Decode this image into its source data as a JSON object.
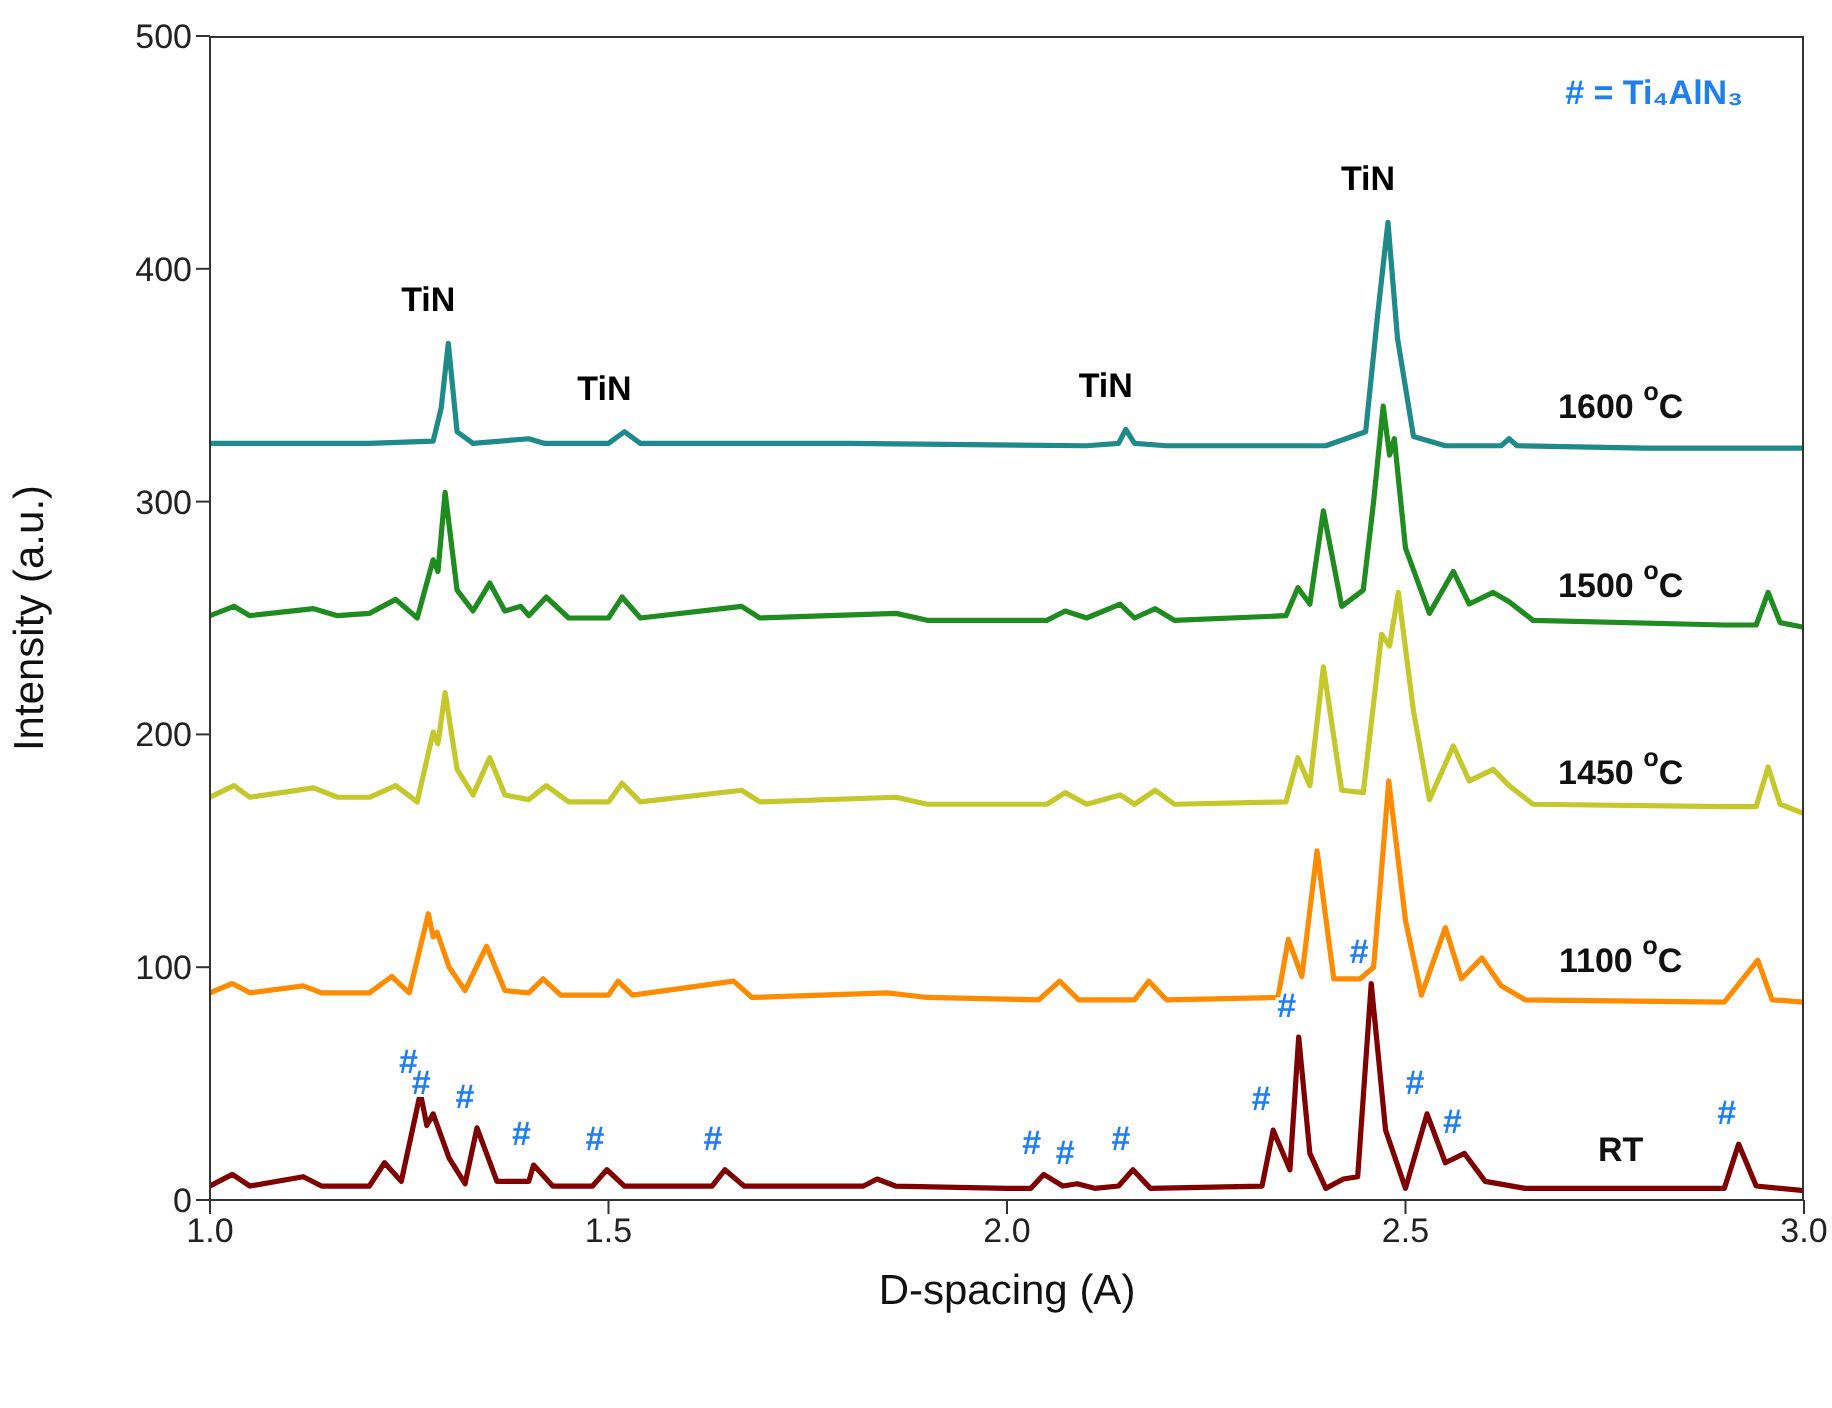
{
  "chart_data": {
    "type": "line",
    "xlabel": "D-spacing (A)",
    "ylabel": "Intensity (a.u.)",
    "xlim": [
      1.0,
      3.0
    ],
    "xticks": [
      {
        "value": 1.0,
        "label": "1.0"
      },
      {
        "value": 1.5,
        "label": "1.5"
      },
      {
        "value": 2.0,
        "label": "2.0"
      },
      {
        "value": 2.5,
        "label": "2.5"
      },
      {
        "value": 3.0,
        "label": "3.0"
      }
    ],
    "ylim": [
      0,
      500
    ],
    "yticks": [
      0,
      100,
      200,
      300,
      400,
      500
    ],
    "grid": false,
    "legend": false,
    "marker": "none",
    "line_style": "solid",
    "series": [
      {
        "name": "1600 $^{o}$C",
        "color": "#1f8a8a",
        "x": [
          1.0,
          1.2,
          1.28,
          1.29,
          1.299,
          1.31,
          1.33,
          1.4,
          1.42,
          1.5,
          1.52,
          1.54,
          1.8,
          2.1,
          2.14,
          2.149,
          2.16,
          2.2,
          2.4,
          2.45,
          2.465,
          2.478,
          2.49,
          2.51,
          2.55,
          2.62,
          2.63,
          2.64,
          2.8,
          3.0
        ],
        "values": [
          325,
          325,
          326,
          340,
          368,
          330,
          325,
          327,
          325,
          325,
          330,
          325,
          325,
          324,
          325,
          331,
          325,
          324,
          324,
          330,
          380,
          420,
          370,
          328,
          324,
          324,
          327,
          324,
          323,
          323
        ]
      },
      {
        "name": "1500 $^{o}$C",
        "color": "#1e8c1e",
        "x": [
          1.0,
          1.03,
          1.05,
          1.13,
          1.16,
          1.2,
          1.233,
          1.26,
          1.28,
          1.286,
          1.295,
          1.31,
          1.33,
          1.351,
          1.37,
          1.39,
          1.4,
          1.422,
          1.45,
          1.5,
          1.517,
          1.54,
          1.667,
          1.69,
          1.861,
          1.9,
          2.05,
          2.073,
          2.1,
          2.142,
          2.16,
          2.186,
          2.21,
          2.35,
          2.365,
          2.38,
          2.397,
          2.42,
          2.447,
          2.46,
          2.472,
          2.48,
          2.486,
          2.5,
          2.53,
          2.56,
          2.58,
          2.61,
          2.63,
          2.66,
          2.9,
          2.94,
          2.955,
          2.97,
          3.0
        ],
        "values": [
          251,
          255,
          251,
          254,
          251,
          252,
          258,
          250,
          275,
          270,
          304,
          262,
          253,
          265,
          253,
          255,
          251,
          259,
          250,
          250,
          259,
          250,
          255,
          250,
          252,
          249,
          249,
          253,
          250,
          256,
          250,
          254,
          249,
          251,
          263,
          256,
          296,
          255,
          262,
          300,
          341,
          320,
          327,
          280,
          252,
          270,
          256,
          261,
          257,
          249,
          247,
          247,
          261,
          248,
          246
        ]
      },
      {
        "name": "1450 $^{o}$C",
        "color": "#c4c82a",
        "x": [
          1.0,
          1.03,
          1.05,
          1.13,
          1.16,
          1.2,
          1.233,
          1.26,
          1.28,
          1.286,
          1.295,
          1.31,
          1.33,
          1.351,
          1.37,
          1.4,
          1.422,
          1.45,
          1.5,
          1.517,
          1.54,
          1.667,
          1.69,
          1.861,
          1.9,
          2.05,
          2.073,
          2.1,
          2.142,
          2.16,
          2.186,
          2.21,
          2.35,
          2.365,
          2.38,
          2.397,
          2.42,
          2.447,
          2.47,
          2.48,
          2.491,
          2.51,
          2.53,
          2.56,
          2.58,
          2.61,
          2.63,
          2.66,
          2.9,
          2.94,
          2.955,
          2.97,
          3.0
        ],
        "values": [
          173,
          178,
          173,
          177,
          173,
          173,
          178,
          171,
          201,
          196,
          218,
          185,
          174,
          190,
          174,
          172,
          178,
          171,
          171,
          179,
          171,
          176,
          171,
          173,
          170,
          170,
          175,
          170,
          174,
          170,
          176,
          170,
          171,
          190,
          178,
          229,
          176,
          175,
          243,
          238,
          261,
          210,
          172,
          195,
          180,
          185,
          178,
          170,
          169,
          169,
          186,
          170,
          166
        ]
      },
      {
        "name": "1100 $^{o}$C",
        "color": "#ff8c00",
        "x": [
          1.0,
          1.028,
          1.05,
          1.117,
          1.14,
          1.2,
          1.228,
          1.25,
          1.274,
          1.28,
          1.285,
          1.3,
          1.32,
          1.347,
          1.37,
          1.4,
          1.418,
          1.44,
          1.5,
          1.512,
          1.53,
          1.657,
          1.68,
          1.85,
          1.9,
          2.04,
          2.066,
          2.09,
          2.16,
          2.178,
          2.2,
          2.34,
          2.353,
          2.37,
          2.389,
          2.41,
          2.443,
          2.46,
          2.479,
          2.5,
          2.52,
          2.55,
          2.57,
          2.596,
          2.62,
          2.65,
          2.9,
          2.942,
          2.96,
          3.0
        ],
        "values": [
          89,
          93,
          89,
          92,
          89,
          89,
          96,
          89,
          123,
          113,
          115,
          100,
          90,
          109,
          90,
          89,
          95,
          88,
          88,
          94,
          88,
          94,
          87,
          89,
          87,
          86,
          94,
          86,
          86,
          94,
          86,
          87,
          112,
          96,
          150,
          95,
          95,
          100,
          180,
          120,
          88,
          117,
          95,
          104,
          92,
          86,
          85,
          103,
          86,
          85
        ]
      },
      {
        "name": "RT",
        "color": "#800000",
        "x": [
          1.0,
          1.028,
          1.05,
          1.117,
          1.14,
          1.2,
          1.219,
          1.24,
          1.264,
          1.272,
          1.28,
          1.3,
          1.32,
          1.335,
          1.36,
          1.4,
          1.406,
          1.43,
          1.48,
          1.498,
          1.52,
          1.63,
          1.646,
          1.67,
          1.82,
          1.837,
          1.86,
          2.0,
          2.03,
          2.046,
          2.07,
          2.088,
          2.11,
          2.14,
          2.158,
          2.18,
          2.32,
          2.334,
          2.355,
          2.366,
          2.38,
          2.4,
          2.422,
          2.44,
          2.457,
          2.475,
          2.5,
          2.527,
          2.55,
          2.574,
          2.6,
          2.65,
          2.9,
          2.918,
          2.94,
          3.0
        ],
        "values": [
          6,
          11,
          6,
          10,
          6,
          6,
          16,
          8,
          46,
          32,
          37,
          18,
          7,
          31,
          8,
          8,
          15,
          6,
          6,
          13,
          6,
          6,
          13,
          6,
          6,
          9,
          6,
          5,
          5,
          11,
          6,
          7,
          5,
          6,
          13,
          5,
          6,
          30,
          13,
          70,
          20,
          5,
          9,
          10,
          93,
          30,
          5,
          37,
          16,
          20,
          8,
          5,
          5,
          24,
          6,
          4
        ]
      }
    ],
    "annotations": [
      {
        "text": "TiN",
        "x": 1.299,
        "y": 368
      },
      {
        "text": "TiN",
        "x": 1.52,
        "y": 330
      },
      {
        "text": "TiN",
        "x": 2.149,
        "y": 331
      },
      {
        "text": "TiN",
        "x": 2.478,
        "y": 420
      },
      {
        "text": "#",
        "x": 1.264,
        "y": 46
      },
      {
        "text": "#",
        "x": 1.28,
        "y": 37
      },
      {
        "text": "#",
        "x": 1.335,
        "y": 31
      },
      {
        "text": "#",
        "x": 1.406,
        "y": 15
      },
      {
        "text": "#",
        "x": 1.498,
        "y": 13
      },
      {
        "text": "#",
        "x": 1.646,
        "y": 13
      },
      {
        "text": "#",
        "x": 2.046,
        "y": 11
      },
      {
        "text": "#",
        "x": 2.088,
        "y": 7
      },
      {
        "text": "#",
        "x": 2.158,
        "y": 13
      },
      {
        "text": "#",
        "x": 2.334,
        "y": 30
      },
      {
        "text": "#",
        "x": 2.366,
        "y": 70
      },
      {
        "text": "#",
        "x": 2.457,
        "y": 93
      },
      {
        "text": "#",
        "x": 2.527,
        "y": 37
      },
      {
        "text": "#",
        "x": 2.574,
        "y": 20
      },
      {
        "text": "#",
        "x": 2.918,
        "y": 24
      },
      "# =  Ti₄AlN₃"
    ]
  }
}
